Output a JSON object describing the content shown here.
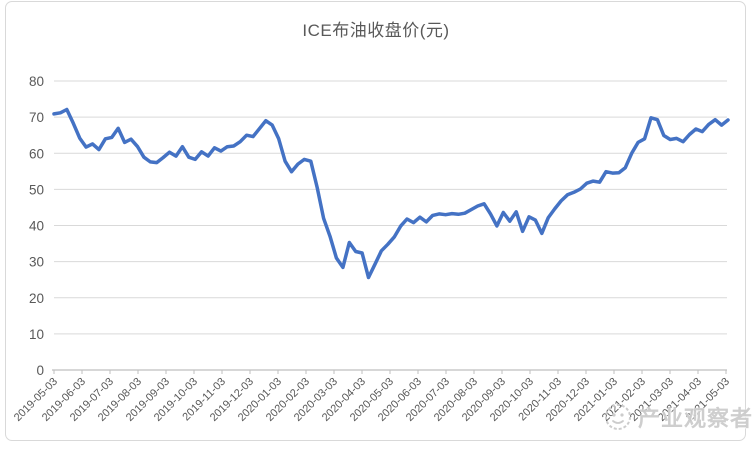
{
  "chart_data": {
    "type": "line",
    "title": "ICE布油收盘价(元)",
    "legend": "none",
    "grid": true,
    "ylim": [
      0,
      80
    ],
    "y_ticks": [
      0,
      10,
      20,
      30,
      40,
      50,
      60,
      70,
      80
    ],
    "x_tick_labels": [
      "2019-05-03",
      "2019-06-03",
      "2019-07-03",
      "2019-08-03",
      "2019-09-03",
      "2019-10-03",
      "2019-11-03",
      "2019-12-03",
      "2020-01-03",
      "2020-02-03",
      "2020-03-03",
      "2020-04-03",
      "2020-05-03",
      "2020-06-03",
      "2020-07-03",
      "2020-08-03",
      "2020-09-03",
      "2020-10-03",
      "2020-11-03",
      "2020-12-03",
      "2021-01-03",
      "2021-02-03",
      "2021-03-03",
      "2021-04-03",
      "2021-05-03"
    ],
    "values": [
      70.9,
      71.2,
      72.1,
      68.3,
      64.2,
      61.7,
      62.6,
      61.0,
      64.0,
      64.4,
      66.9,
      63.0,
      63.9,
      61.9,
      58.9,
      57.6,
      57.4,
      58.8,
      60.3,
      59.2,
      61.8,
      58.9,
      58.3,
      60.4,
      59.2,
      61.5,
      60.6,
      61.8,
      62.0,
      63.2,
      65.0,
      64.6,
      66.8,
      69.0,
      67.8,
      64.0,
      57.8,
      54.9,
      57.0,
      58.3,
      57.8,
      50.5,
      42.0,
      37.0,
      31.0,
      28.4,
      35.3,
      32.8,
      32.4,
      25.6,
      29.3,
      33.0,
      34.8,
      36.8,
      39.8,
      41.8,
      40.8,
      42.3,
      41.0,
      42.8,
      43.2,
      43.0,
      43.3,
      43.1,
      43.4,
      44.4,
      45.4,
      46.0,
      43.2,
      39.9,
      43.6,
      41.2,
      43.8,
      38.4,
      42.4,
      41.5,
      37.8,
      42.2,
      44.6,
      46.8,
      48.5,
      49.2,
      50.1,
      51.7,
      52.3,
      52.0,
      54.9,
      54.5,
      54.6,
      56.0,
      60.0,
      63.0,
      64.0,
      69.8,
      69.3,
      64.9,
      63.8,
      64.1,
      63.2,
      65.2,
      66.7,
      66.0,
      68.0,
      69.3,
      67.8,
      69.2
    ],
    "colors": {
      "line": "#4472C4",
      "gridline": "#d9d9d9",
      "axis": "#bfbfbf",
      "labels": "#595959",
      "title": "#595959"
    }
  },
  "watermark": {
    "text": "产业观察者"
  }
}
